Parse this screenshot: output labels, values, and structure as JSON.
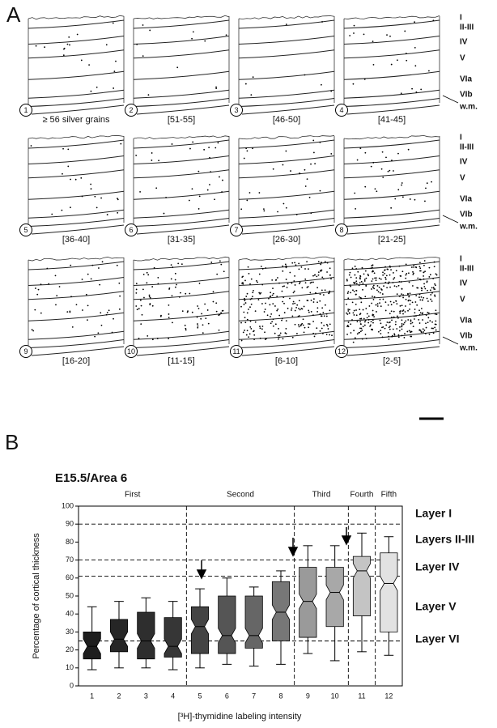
{
  "panelA": {
    "label": "A",
    "layers": [
      "I",
      "II-III",
      "IV",
      "V",
      "VIa",
      "VIb",
      "w.m."
    ],
    "panels": [
      {
        "number": "1",
        "caption": "≥ 56 silver grains"
      },
      {
        "number": "2",
        "caption": "[51-55]"
      },
      {
        "number": "3",
        "caption": "[46-50]"
      },
      {
        "number": "4",
        "caption": "[41-45]"
      },
      {
        "number": "5",
        "caption": "[36-40]"
      },
      {
        "number": "6",
        "caption": "[31-35]"
      },
      {
        "number": "7",
        "caption": "[26-30]"
      },
      {
        "number": "8",
        "caption": "[21-25]"
      },
      {
        "number": "9",
        "caption": "[16-20]"
      },
      {
        "number": "10",
        "caption": "[11-15]"
      },
      {
        "number": "11",
        "caption": "[6-10]"
      },
      {
        "number": "12",
        "caption": "[2-5]"
      }
    ]
  },
  "panelB": {
    "label": "B"
  },
  "chart_data": {
    "type": "box",
    "title": "E15.5/Area 6",
    "y_label": "Percentage of cortical thickness",
    "x_label": "[³H]-thymidine labeling intensity",
    "categories": [
      "1",
      "2",
      "3",
      "4",
      "5",
      "6",
      "7",
      "8",
      "9",
      "10",
      "11",
      "12"
    ],
    "boxes": [
      {
        "low": 9,
        "q1": 15,
        "median": 22,
        "q3": 30,
        "high": 44,
        "color": "#1e1e1e"
      },
      {
        "low": 10,
        "q1": 19,
        "median": 26,
        "q3": 37,
        "high": 47,
        "color": "#262626"
      },
      {
        "low": 10,
        "q1": 15,
        "median": 25,
        "q3": 41,
        "high": 49,
        "color": "#2e2e2e"
      },
      {
        "low": 9,
        "q1": 16,
        "median": 22,
        "q3": 38,
        "high": 47,
        "color": "#363636"
      },
      {
        "low": 10,
        "q1": 18,
        "median": 33,
        "q3": 44,
        "high": 54,
        "color": "#444444"
      },
      {
        "low": 12,
        "q1": 18,
        "median": 28,
        "q3": 50,
        "high": 60,
        "color": "#555555"
      },
      {
        "low": 11,
        "q1": 21,
        "median": 28,
        "q3": 50,
        "high": 55,
        "color": "#666666"
      },
      {
        "low": 12,
        "q1": 25,
        "median": 41,
        "q3": 58,
        "high": 64,
        "color": "#777777"
      },
      {
        "low": 18,
        "q1": 27,
        "median": 47,
        "q3": 66,
        "high": 78,
        "color": "#9a9a9a"
      },
      {
        "low": 14,
        "q1": 33,
        "median": 52,
        "q3": 66,
        "high": 78,
        "color": "#a8a8a8"
      },
      {
        "low": 19,
        "q1": 39,
        "median": 64,
        "q3": 72,
        "high": 85,
        "color": "#c4c4c4"
      },
      {
        "low": 17,
        "q1": 30,
        "median": 57,
        "q3": 74,
        "high": 83,
        "color": "#e2e2e2"
      }
    ],
    "groups": [
      {
        "label": "First",
        "from": "1",
        "to": "4"
      },
      {
        "label": "Second",
        "from": "5",
        "to": "8"
      },
      {
        "label": "Third",
        "from": "9",
        "to": "10"
      },
      {
        "label": "Fourth",
        "from": "11",
        "to": "11"
      },
      {
        "label": "Fifth",
        "from": "12",
        "to": "12"
      }
    ],
    "layer_boundaries": [
      90,
      70,
      61,
      25
    ],
    "layer_labels": [
      "Layer I",
      "Layers II-III",
      "Layer IV",
      "Layer V",
      "Layer VI"
    ],
    "ylim": [
      0,
      100
    ],
    "yticks": [
      0,
      10,
      20,
      30,
      40,
      50,
      60,
      70,
      80,
      90,
      100
    ]
  }
}
